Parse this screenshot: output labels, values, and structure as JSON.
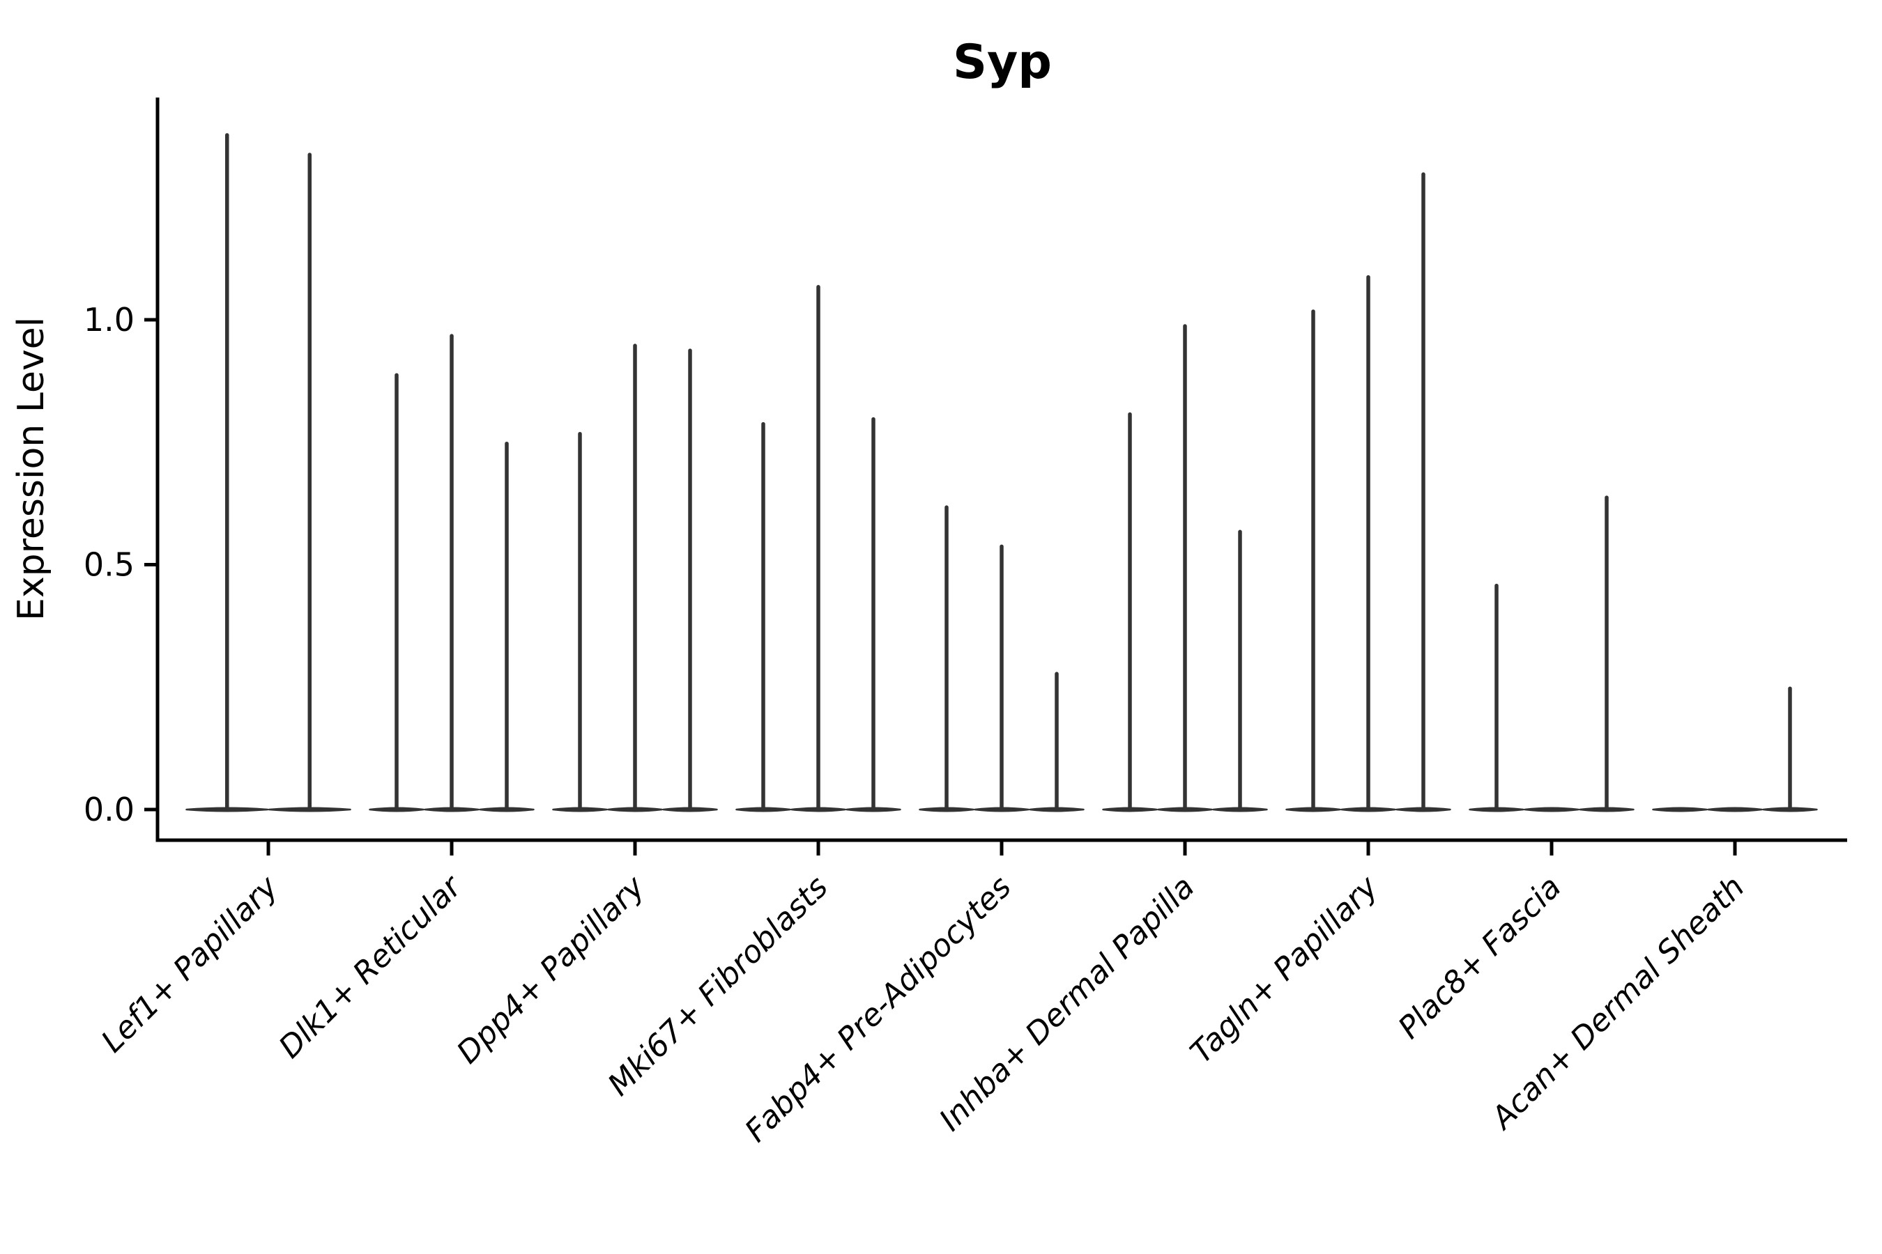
{
  "figure": {
    "background_color": "#ffffff",
    "axis_color": "#000000",
    "violin_color": "#333333"
  },
  "chart_data": {
    "type": "violin",
    "title": "Syp",
    "xlabel": "",
    "ylabel": "Expression Level",
    "ylim": [
      -0.06,
      1.45
    ],
    "yticks": [
      0.0,
      0.5,
      1.0
    ],
    "ytick_labels": [
      "0.0",
      "0.5",
      "1.0"
    ],
    "grid": false,
    "legend": "none",
    "x_tick_rotation_deg": 45,
    "categories": [
      "Lef1+ Papillary",
      "Dlk1+ Reticular",
      "Dpp4+ Papillary",
      "Mki67+ Fibroblasts",
      "Fabp4+ Pre-Adipocytes",
      "Inhba+ Dermal Papilla",
      "Tagln+ Papillary",
      "Plac8+ Fascia",
      "Acan+ Dermal Sheath"
    ],
    "groups": [
      {
        "category": "Lef1+ Papillary",
        "violin_peaks": [
          1.38,
          1.34
        ]
      },
      {
        "category": "Dlk1+ Reticular",
        "violin_peaks": [
          0.89,
          0.97,
          0.75
        ]
      },
      {
        "category": "Dpp4+ Papillary",
        "violin_peaks": [
          0.77,
          0.95,
          0.94
        ]
      },
      {
        "category": "Mki67+ Fibroblasts",
        "violin_peaks": [
          0.79,
          1.07,
          0.8
        ]
      },
      {
        "category": "Fabp4+ Pre-Adipocytes",
        "violin_peaks": [
          0.62,
          0.54,
          0.28
        ]
      },
      {
        "category": "Inhba+ Dermal Papilla",
        "violin_peaks": [
          0.81,
          0.99,
          0.57
        ]
      },
      {
        "category": "Tagln+ Papillary",
        "violin_peaks": [
          1.02,
          1.09,
          1.3
        ]
      },
      {
        "category": "Plac8+ Fascia",
        "violin_peaks": [
          0.46,
          0.0,
          0.64
        ]
      },
      {
        "category": "Acan+ Dermal Sheath",
        "violin_peaks": [
          0.0,
          0.0,
          0.25
        ]
      }
    ],
    "notes": "Violin plot collapsed near zero: each violin is a flat base at 0 with a thin density spike up to its peak expression value; peak 0.00 means flat violin with no spike."
  }
}
